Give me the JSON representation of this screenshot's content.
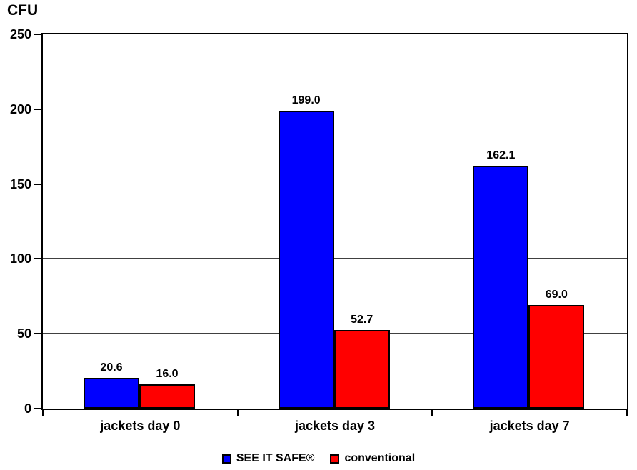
{
  "chart_data": {
    "type": "bar",
    "title": "",
    "ylabel": "CFU",
    "xlabel": "",
    "ylim": [
      0,
      250
    ],
    "yticks": [
      0,
      50,
      100,
      150,
      200,
      250
    ],
    "grid": true,
    "legend_position": "bottom",
    "categories": [
      "jackets day 0",
      "jackets day 3",
      "jackets day 7"
    ],
    "series": [
      {
        "name": "SEE IT SAFE®",
        "color": "#0000ff",
        "values": [
          20.6,
          199.0,
          162.1
        ],
        "labels": [
          "20.6",
          "199.0",
          "162.1"
        ]
      },
      {
        "name": "conventional",
        "color": "#ff0000",
        "values": [
          16.0,
          52.7,
          69.0
        ],
        "labels": [
          "16.0",
          "52.7",
          "69.0"
        ]
      }
    ],
    "colors": {
      "bar_border": "#000000",
      "gridline": "#404040",
      "axis": "#000000",
      "text": "#000000",
      "background": "#ffffff"
    }
  }
}
